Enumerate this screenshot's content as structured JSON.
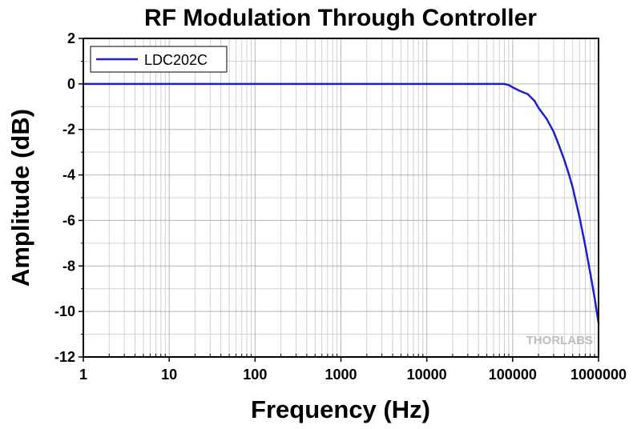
{
  "chart_data": {
    "type": "line",
    "title": "RF Modulation Through Controller",
    "xlabel": "Frequency (Hz)",
    "ylabel": "Amplitude (dB)",
    "x_scale": "log",
    "xlim": [
      1,
      1000000
    ],
    "ylim": [
      -12,
      2
    ],
    "x_ticks": [
      "1",
      "10",
      "100",
      "1000",
      "10000",
      "100000",
      "1000000"
    ],
    "y_ticks": [
      "2",
      "0",
      "-2",
      "-4",
      "-6",
      "-8",
      "-10",
      "-12"
    ],
    "grid": true,
    "legend_position": "top-left",
    "series": [
      {
        "name": "LDC202C",
        "color": "#1f1fcf",
        "x": [
          1,
          10,
          100,
          1000,
          10000,
          50000,
          70000,
          80000,
          90000,
          100000,
          120000,
          150000,
          180000,
          200000,
          250000,
          300000,
          350000,
          400000,
          450000,
          500000,
          600000,
          700000,
          800000,
          900000,
          1000000
        ],
        "y": [
          0,
          0,
          0,
          0,
          0,
          0,
          0,
          0,
          -0.05,
          -0.15,
          -0.3,
          -0.45,
          -0.75,
          -1.05,
          -1.55,
          -2.1,
          -2.75,
          -3.35,
          -3.95,
          -4.55,
          -5.85,
          -7.1,
          -8.3,
          -9.4,
          -10.5
        ]
      }
    ]
  },
  "watermark": {
    "text": "THORLABS"
  }
}
